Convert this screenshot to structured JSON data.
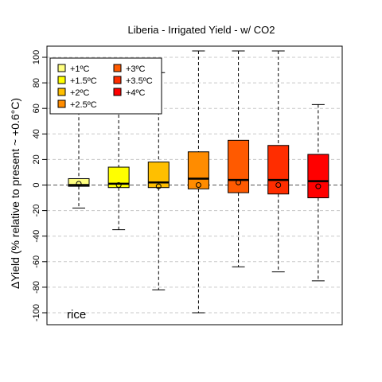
{
  "chart_data": {
    "type": "box",
    "title": "Liberia - Irrigated Yield - w/ CO2",
    "xlabel": "",
    "ylabel": "ΔYield (% relative to present ~ +0.6°C)",
    "ylim": [
      -107,
      107
    ],
    "yticks": [
      -100,
      -80,
      -60,
      -40,
      -20,
      0,
      20,
      40,
      60,
      80,
      100
    ],
    "grid": true,
    "crop_label": "rice",
    "legend": {
      "placement": "top-left",
      "columns": 2
    },
    "series": [
      {
        "name": "+1ºC",
        "color": "#ffff80",
        "whisker_low": -18,
        "q1": -1,
        "median": 0,
        "q3": 5,
        "whisker_high": 88,
        "mean": 1
      },
      {
        "name": "+1.5ºC",
        "color": "#ffff00",
        "whisker_low": -35,
        "q1": -2,
        "median": 1,
        "q3": 14,
        "whisker_high": 90,
        "mean": 0
      },
      {
        "name": "+2ºC",
        "color": "#ffbf00",
        "whisker_low": -82,
        "q1": -2,
        "median": 2,
        "q3": 18,
        "whisker_high": 88,
        "mean": -1
      },
      {
        "name": "+2.5ºC",
        "color": "#ff8c00",
        "whisker_low": -100,
        "q1": -3,
        "median": 5,
        "q3": 26,
        "whisker_high": 105,
        "mean": 0
      },
      {
        "name": "+3ºC",
        "color": "#ff5a00",
        "whisker_low": -64,
        "q1": -6,
        "median": 4,
        "q3": 35,
        "whisker_high": 105,
        "mean": 2
      },
      {
        "name": "+3.5ºC",
        "color": "#ff2d00",
        "whisker_low": -68,
        "q1": -7,
        "median": 4,
        "q3": 31,
        "whisker_high": 105,
        "mean": 0
      },
      {
        "name": "+4ºC",
        "color": "#ff0000",
        "whisker_low": -75,
        "q1": -10,
        "median": 3,
        "q3": 24,
        "whisker_high": 63,
        "mean": -1
      }
    ]
  }
}
